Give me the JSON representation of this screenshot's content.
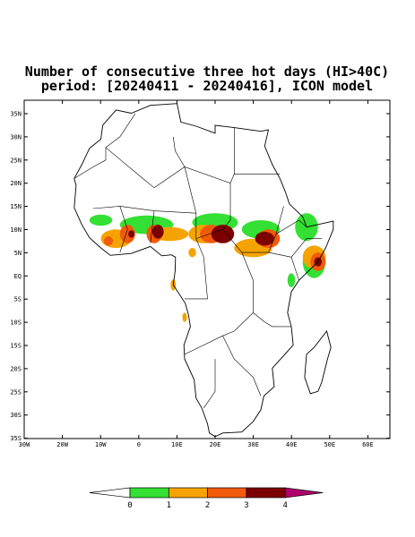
{
  "title": [
    "Number of consecutive three hot days (HI>40C)",
    "period: [20240411 - 20240416], ICON model"
  ],
  "lat_labels": [
    "35N",
    "30N",
    "25N",
    "20N",
    "15N",
    "10N",
    "5N",
    "EQ",
    "5S",
    "10S",
    "15S",
    "20S",
    "25S",
    "30S",
    "35S"
  ],
  "lon_labels": [
    "30W",
    "20W",
    "10W",
    "0",
    "10E",
    "20E",
    "30E",
    "40E",
    "50E",
    "60E"
  ],
  "colorbar": {
    "labels": [
      0,
      1,
      2,
      3,
      4
    ],
    "colors": [
      "#ffffff",
      "#33e033",
      "#f5a300",
      "#f05a0a",
      "#7d0000",
      "#b0006e"
    ]
  }
}
